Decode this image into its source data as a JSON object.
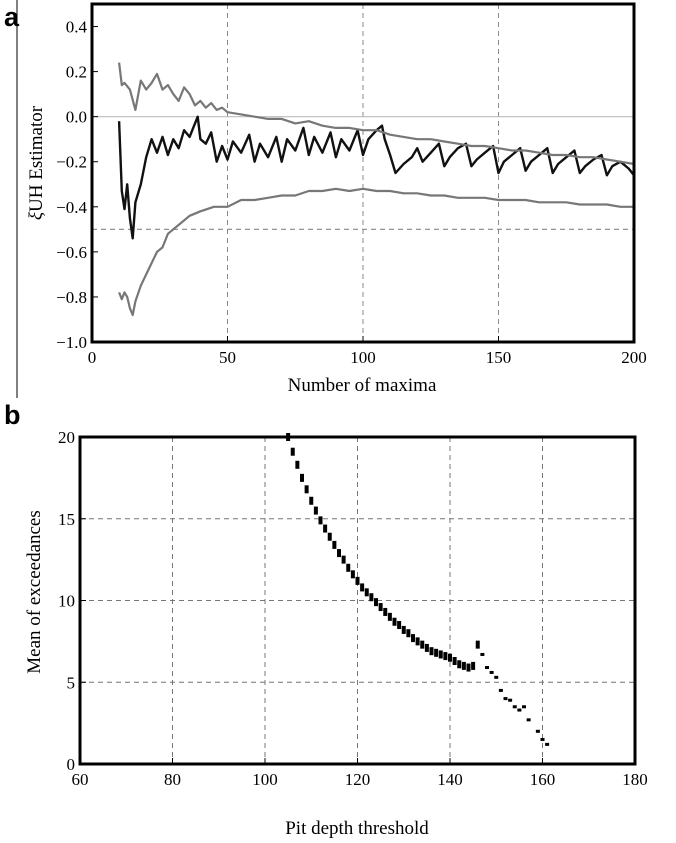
{
  "chart_data": [
    {
      "panel_label": "a",
      "type": "line",
      "xlabel": "Number of maxima",
      "ylabel": "ξUH Estimator",
      "ylabel_greek": "ξ",
      "ylabel_rest": "UH Estimator",
      "xlim": [
        0,
        200
      ],
      "ylim": [
        -1.0,
        0.5
      ],
      "xticks": [
        0,
        50,
        100,
        150,
        200
      ],
      "xtick_labels": [
        "0",
        "50",
        "100",
        "150",
        "200"
      ],
      "yticks": [
        -1.0,
        -0.8,
        -0.6,
        -0.4,
        -0.2,
        0.0,
        0.2,
        0.4
      ],
      "ytick_labels": [
        "−1.0",
        "−0.8",
        "−0.6",
        "−0.4",
        "−0.2",
        "0.0",
        "0.2",
        "0.4"
      ],
      "grid": "dashed vertical at 50, 100, 150; dashed horizontal at -0.5; solid light line at 0",
      "reference_lines": [
        {
          "axis": "y",
          "value": 0.0,
          "style": "solid",
          "color": "#bbbbbb"
        },
        {
          "axis": "y",
          "value": -0.5,
          "style": "dashed",
          "color": "#888888"
        }
      ],
      "series": [
        {
          "role": "estimate",
          "color": "#111111",
          "x": [
            10,
            11,
            12,
            13,
            14,
            15,
            16,
            18,
            20,
            22,
            24,
            26,
            28,
            30,
            32,
            34,
            36,
            38,
            39,
            40,
            42,
            44,
            46,
            48,
            50,
            52,
            55,
            58,
            60,
            62,
            65,
            68,
            70,
            72,
            75,
            78,
            80,
            82,
            85,
            88,
            90,
            92,
            95,
            98,
            100,
            102,
            105,
            107,
            108,
            110,
            112,
            115,
            118,
            120,
            122,
            125,
            128,
            130,
            132,
            135,
            138,
            140,
            142,
            145,
            148,
            150,
            152,
            155,
            158,
            160,
            162,
            165,
            168,
            170,
            172,
            175,
            178,
            180,
            182,
            185,
            188,
            190,
            192,
            195,
            198,
            200
          ],
          "y": [
            -0.02,
            -0.33,
            -0.41,
            -0.3,
            -0.45,
            -0.54,
            -0.38,
            -0.3,
            -0.18,
            -0.1,
            -0.16,
            -0.09,
            -0.17,
            -0.1,
            -0.14,
            -0.06,
            -0.09,
            -0.03,
            0.0,
            -0.1,
            -0.12,
            -0.07,
            -0.2,
            -0.13,
            -0.19,
            -0.11,
            -0.16,
            -0.08,
            -0.2,
            -0.12,
            -0.18,
            -0.09,
            -0.2,
            -0.1,
            -0.15,
            -0.05,
            -0.17,
            -0.09,
            -0.16,
            -0.07,
            -0.18,
            -0.1,
            -0.15,
            -0.06,
            -0.17,
            -0.1,
            -0.06,
            -0.04,
            -0.1,
            -0.17,
            -0.25,
            -0.21,
            -0.18,
            -0.14,
            -0.2,
            -0.16,
            -0.12,
            -0.22,
            -0.18,
            -0.14,
            -0.12,
            -0.22,
            -0.19,
            -0.16,
            -0.13,
            -0.25,
            -0.2,
            -0.17,
            -0.14,
            -0.24,
            -0.2,
            -0.17,
            -0.14,
            -0.25,
            -0.21,
            -0.18,
            -0.15,
            -0.25,
            -0.22,
            -0.19,
            -0.17,
            -0.26,
            -0.22,
            -0.2,
            -0.23,
            -0.26
          ]
        },
        {
          "role": "upper bound",
          "color": "#777777",
          "x": [
            10,
            11,
            12,
            14,
            16,
            18,
            20,
            22,
            24,
            26,
            28,
            30,
            32,
            34,
            36,
            38,
            40,
            42,
            44,
            46,
            48,
            50,
            55,
            60,
            65,
            70,
            75,
            80,
            85,
            90,
            95,
            100,
            105,
            110,
            115,
            120,
            125,
            130,
            135,
            140,
            145,
            150,
            155,
            160,
            165,
            170,
            175,
            180,
            185,
            190,
            195,
            200
          ],
          "y": [
            0.24,
            0.14,
            0.15,
            0.12,
            0.03,
            0.16,
            0.12,
            0.15,
            0.19,
            0.12,
            0.14,
            0.1,
            0.07,
            0.13,
            0.1,
            0.05,
            0.07,
            0.04,
            0.06,
            0.03,
            0.04,
            0.02,
            0.01,
            0.0,
            -0.01,
            -0.01,
            -0.03,
            -0.02,
            -0.04,
            -0.05,
            -0.05,
            -0.06,
            -0.06,
            -0.08,
            -0.09,
            -0.1,
            -0.1,
            -0.11,
            -0.12,
            -0.13,
            -0.13,
            -0.14,
            -0.15,
            -0.15,
            -0.16,
            -0.17,
            -0.17,
            -0.18,
            -0.18,
            -0.19,
            -0.2,
            -0.21
          ]
        },
        {
          "role": "lower bound",
          "color": "#777777",
          "x": [
            10,
            11,
            12,
            13,
            14,
            15,
            16,
            18,
            20,
            22,
            24,
            26,
            28,
            30,
            33,
            36,
            40,
            45,
            50,
            55,
            60,
            65,
            70,
            75,
            80,
            85,
            90,
            95,
            100,
            105,
            110,
            115,
            120,
            125,
            130,
            135,
            140,
            145,
            150,
            155,
            160,
            165,
            170,
            175,
            180,
            185,
            190,
            195,
            200
          ],
          "y": [
            -0.78,
            -0.81,
            -0.78,
            -0.8,
            -0.85,
            -0.88,
            -0.82,
            -0.75,
            -0.7,
            -0.65,
            -0.6,
            -0.58,
            -0.52,
            -0.5,
            -0.47,
            -0.44,
            -0.42,
            -0.4,
            -0.4,
            -0.37,
            -0.37,
            -0.36,
            -0.35,
            -0.35,
            -0.33,
            -0.33,
            -0.32,
            -0.33,
            -0.32,
            -0.33,
            -0.33,
            -0.34,
            -0.34,
            -0.35,
            -0.35,
            -0.36,
            -0.36,
            -0.36,
            -0.37,
            -0.37,
            -0.37,
            -0.38,
            -0.38,
            -0.38,
            -0.39,
            -0.39,
            -0.39,
            -0.4,
            -0.4
          ]
        }
      ]
    },
    {
      "panel_label": "b",
      "type": "scatter",
      "xlabel": "Pit depth threshold",
      "ylabel": "Mean of exceedances",
      "xlim": [
        60,
        180
      ],
      "ylim": [
        0,
        20
      ],
      "xticks": [
        60,
        80,
        100,
        120,
        140,
        160,
        180
      ],
      "xtick_labels": [
        "60",
        "80",
        "100",
        "120",
        "140",
        "160",
        "180"
      ],
      "yticks": [
        0,
        5,
        10,
        15,
        20
      ],
      "ytick_labels": [
        "0",
        "5",
        "10",
        "15",
        "20"
      ],
      "grid": "dashed, both axes",
      "series": [
        {
          "color": "#000000",
          "x": [
            105,
            106,
            107,
            108,
            109,
            110,
            111,
            112,
            113,
            114,
            115,
            116,
            117,
            118,
            119,
            120,
            121,
            122,
            123,
            124,
            125,
            126,
            127,
            128,
            129,
            130,
            131,
            132,
            133,
            134,
            135,
            136,
            137,
            138,
            139,
            140,
            141,
            142,
            143,
            144,
            145,
            146,
            147,
            148,
            149,
            150,
            151,
            152,
            153,
            154,
            155,
            156,
            157,
            159,
            160,
            161
          ],
          "y": [
            20.0,
            19.1,
            18.3,
            17.5,
            16.8,
            16.1,
            15.5,
            14.9,
            14.4,
            13.9,
            13.4,
            12.9,
            12.5,
            12.0,
            11.6,
            11.2,
            10.8,
            10.5,
            10.2,
            9.9,
            9.6,
            9.3,
            9.0,
            8.7,
            8.5,
            8.2,
            8.0,
            7.7,
            7.5,
            7.3,
            7.1,
            6.9,
            6.8,
            6.7,
            6.6,
            6.5,
            6.3,
            6.1,
            6.0,
            5.9,
            6.0,
            7.3,
            6.7,
            5.9,
            5.6,
            5.3,
            4.5,
            4.0,
            3.9,
            3.5,
            3.3,
            3.5,
            2.7,
            2.0,
            1.5,
            1.2
          ]
        }
      ]
    }
  ]
}
